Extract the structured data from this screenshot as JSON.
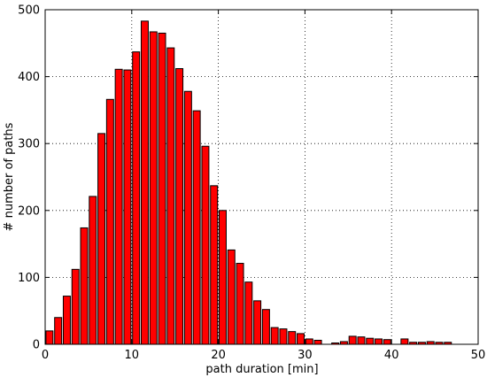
{
  "chart_data": {
    "type": "bar",
    "title": "",
    "xlabel": "path duration [min]",
    "ylabel": "# number of paths",
    "xlim": [
      0,
      50
    ],
    "ylim": [
      0,
      500
    ],
    "xticks": [
      0,
      10,
      20,
      30,
      40,
      50
    ],
    "yticks": [
      0,
      100,
      200,
      300,
      400,
      500
    ],
    "grid": true,
    "bar_color": "#ff0000",
    "bar_edge_color": "#000000",
    "bins": {
      "start": 0,
      "width": 1,
      "values": [
        20,
        40,
        72,
        112,
        174,
        221,
        315,
        366,
        411,
        410,
        437,
        483,
        467,
        465,
        443,
        412,
        378,
        349,
        296,
        237,
        200,
        141,
        121,
        93,
        65,
        52,
        25,
        23,
        19,
        16,
        8,
        6,
        0,
        2,
        4,
        12,
        11,
        9,
        8,
        7,
        0,
        8,
        3,
        3,
        4,
        3,
        3,
        0,
        0,
        0
      ]
    }
  }
}
